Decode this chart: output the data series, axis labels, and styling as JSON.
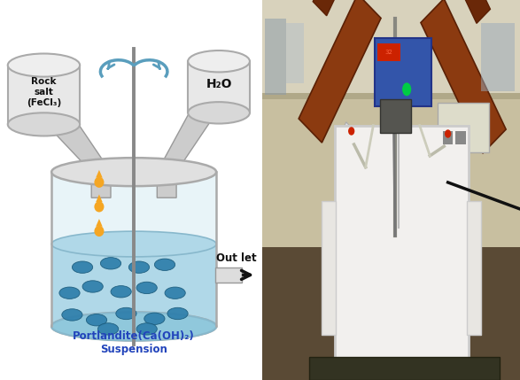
{
  "bg_color": "#ffffff",
  "left_labels": {
    "rock_salt": "Rock\nsalt\n(FeCl₃)",
    "h2o": "H₂O",
    "portlandite": "Portlandite(Ca(OH)₂)\nSuspension",
    "outlet": "Out let"
  },
  "tank_fill": "#e8f4f8",
  "tank_edge": "#aaaaaa",
  "water_color": "#b0d8e8",
  "water_edge": "#88b8cc",
  "stirrer_color": "#888888",
  "drop_color": "#f5a623",
  "particle_color": "#2e7eab",
  "particle_edge": "#1a5a7a",
  "funnel_fill": "#cccccc",
  "funnel_edge": "#999999",
  "rotate_color": "#5a9ebd",
  "outlet_fill": "#dddddd",
  "outlet_edge": "#999999",
  "portlandite_color": "#2244bb",
  "photo_bg_top": "#c8bfa0",
  "photo_bg_bench": "#706050",
  "photo_bench_dark": "#4a3a28",
  "photo_wall_shelf": "#d8d0b8",
  "photo_container_fill": "#f0efed",
  "photo_container_edge": "#cccccc",
  "photo_bottle_fill": "#7a3010",
  "photo_bottle_liquid": "#8b2500",
  "photo_ctrl_fill": "#4466aa",
  "photo_socket_fill": "#ddddcc"
}
